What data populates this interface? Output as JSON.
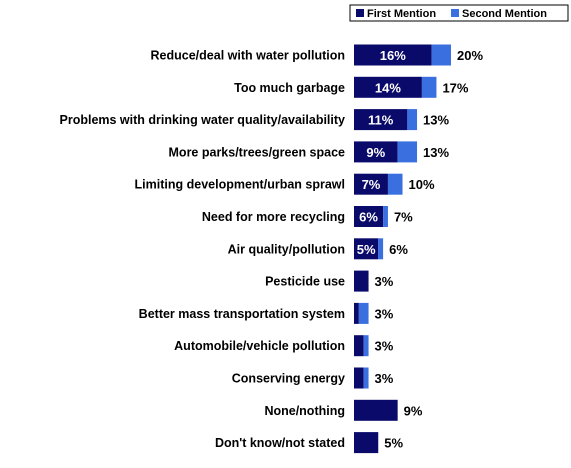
{
  "colors": {
    "first": "#0a0a6a",
    "second": "#3a6fe0"
  },
  "chart_data": {
    "type": "bar",
    "orientation": "horizontal",
    "stacked": true,
    "legend": {
      "placement": "top-right",
      "entries": [
        "First Mention",
        "Second Mention"
      ]
    },
    "categories": [
      "Reduce/deal with water pollution",
      "Too much garbage",
      "Problems with drinking water quality/availability",
      "More parks/trees/green space",
      "Limiting development/urban sprawl",
      "Need for more recycling",
      "Air quality/pollution",
      "Pesticide use",
      "Better mass transportation system",
      "Automobile/vehicle pollution",
      "Conserving energy",
      "None/nothing",
      "Don't know/not stated"
    ],
    "series": [
      {
        "name": "First Mention",
        "values": [
          16,
          14,
          11,
          9,
          7,
          6,
          5,
          3,
          1,
          2,
          2,
          9,
          5
        ]
      },
      {
        "name": "Second Mention",
        "values": [
          4,
          3,
          2,
          4,
          3,
          1,
          1,
          0,
          2,
          1,
          1,
          0,
          0
        ]
      }
    ],
    "inner_labels": [
      "16%",
      "14%",
      "11%",
      "9%",
      "7%",
      "6%",
      "5%",
      "",
      "",
      "",
      "",
      "",
      ""
    ],
    "total_labels": [
      "20%",
      "17%",
      "13%",
      "13%",
      "10%",
      "7%",
      "6%",
      "3%",
      "3%",
      "3%",
      "3%",
      "9%",
      "5%"
    ],
    "xlim": [
      0,
      20
    ],
    "grid": false
  }
}
